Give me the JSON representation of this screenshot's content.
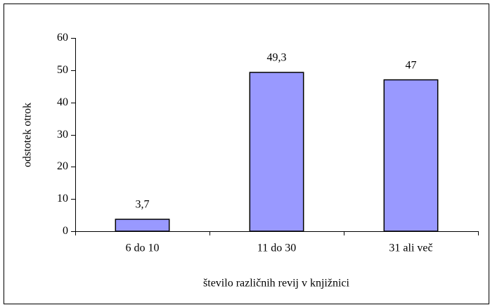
{
  "chart_data": {
    "type": "bar",
    "x_label": "število različnih revij v knjižnici",
    "y_label": "odstotek otrok",
    "categories": [
      "6 do 10",
      "11 do 30",
      "31 ali več"
    ],
    "values": [
      3.7,
      49.3,
      47
    ],
    "value_labels": [
      "3,7",
      "49,3",
      "47"
    ],
    "color": "#9999ff",
    "ylim": [
      0,
      60
    ],
    "yticks": [
      0,
      10,
      20,
      30,
      40,
      50,
      60
    ],
    "grid": false
  }
}
